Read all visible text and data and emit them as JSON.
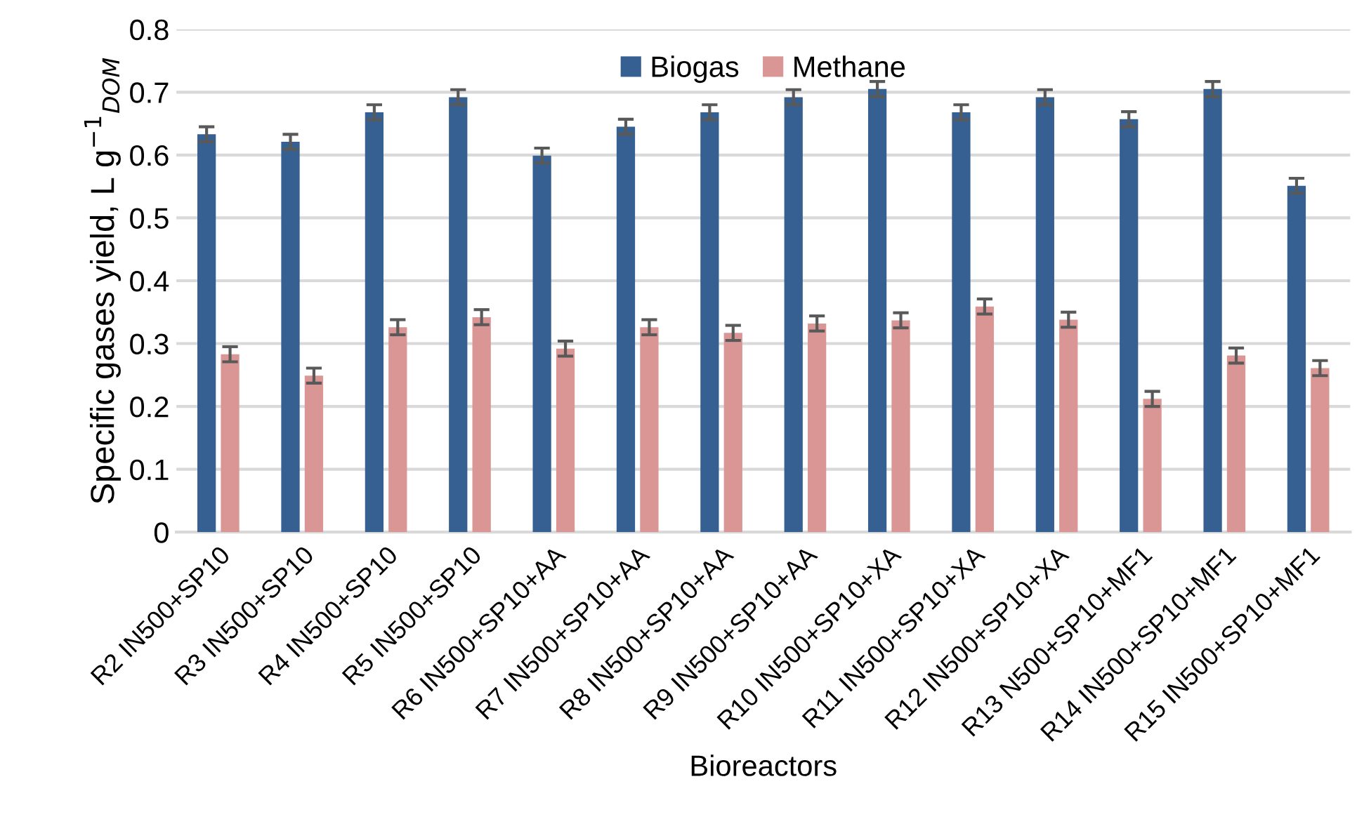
{
  "chart_data": {
    "type": "bar",
    "xlabel": "Bioreactors",
    "ylabel": "Specific gases yield, L g$^{−1}$$_{DOM}$",
    "categories": [
      "R2 IN500+SP10",
      "R3 IN500+SP10",
      "R4 IN500+SP10",
      "R5 IN500+SP10",
      "R6 IN500+SP10+AA",
      "R7 IN500+SP10+AA",
      "R8 IN500+SP10+AA",
      "R9 IN500+SP10+AA",
      "R10 IN500+SP10+XA",
      "R11 IN500+SP10+XA",
      "R12 IN500+SP10+XA",
      "R13 N500+SP10+MF1",
      "R14 IN500+SP10+MF1",
      "R15 IN500+SP10+MF1"
    ],
    "series": [
      {
        "name": "Biogas",
        "color": "#376092",
        "values": [
          0.633,
          0.621,
          0.668,
          0.692,
          0.599,
          0.645,
          0.668,
          0.692,
          0.705,
          0.668,
          0.692,
          0.657,
          0.705,
          0.551
        ],
        "errors": [
          0.012,
          0.012,
          0.012,
          0.012,
          0.012,
          0.012,
          0.012,
          0.012,
          0.012,
          0.012,
          0.012,
          0.012,
          0.012,
          0.012
        ]
      },
      {
        "name": "Methane",
        "color": "#d99694",
        "values": [
          0.283,
          0.249,
          0.326,
          0.342,
          0.292,
          0.326,
          0.317,
          0.332,
          0.337,
          0.359,
          0.338,
          0.212,
          0.281,
          0.261
        ],
        "errors": [
          0.012,
          0.012,
          0.012,
          0.012,
          0.012,
          0.012,
          0.012,
          0.012,
          0.012,
          0.012,
          0.012,
          0.012,
          0.012,
          0.012
        ]
      }
    ],
    "ylim": [
      0,
      0.8
    ],
    "yticks": [
      {
        "value": 0,
        "label": "0"
      },
      0.1,
      0.2,
      0.3,
      0.4,
      0.5,
      0.6,
      0.7,
      0.8
    ],
    "grid": "y",
    "legend": "top"
  }
}
